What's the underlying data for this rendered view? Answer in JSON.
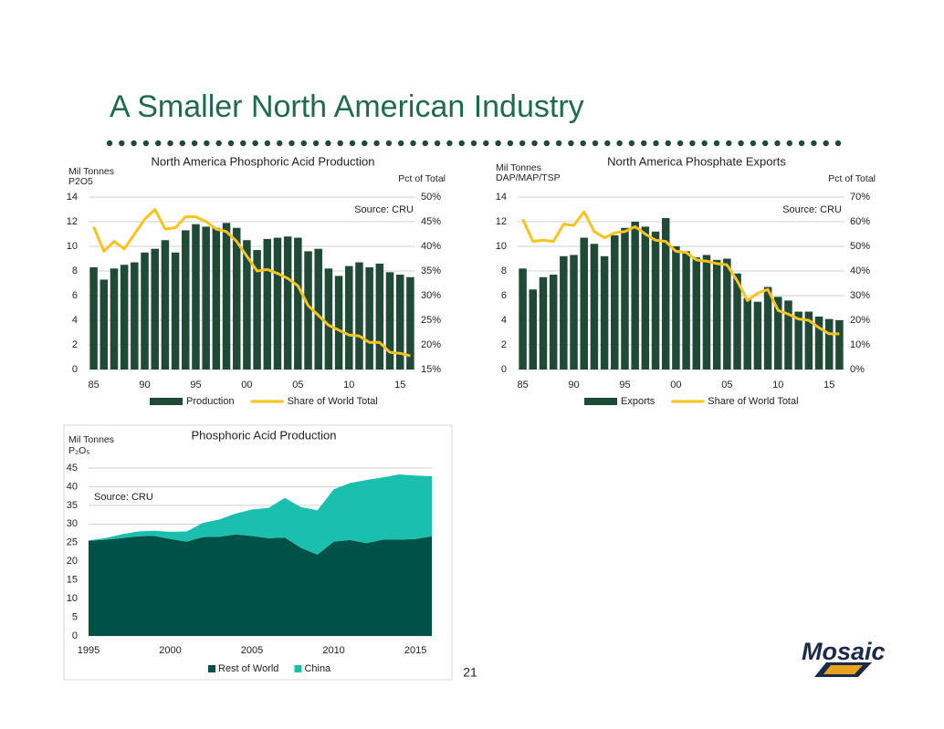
{
  "title": "A Smaller North American Industry",
  "page_number": "21",
  "logo": "Mosaic",
  "chart_data": [
    {
      "type": "combo",
      "title": "North America Phosphoric Acid Production",
      "y_label": [
        "Mil Tonnes",
        "P2O5"
      ],
      "y2_label": "Pct of Total",
      "annotation": "Source:  CRU",
      "categories": [
        "85",
        null,
        null,
        null,
        null,
        "90",
        null,
        null,
        null,
        null,
        "95",
        null,
        null,
        null,
        null,
        "00",
        null,
        null,
        null,
        null,
        "05",
        null,
        null,
        null,
        null,
        "10",
        null,
        null,
        null,
        null,
        "15",
        null
      ],
      "ylim": [
        0,
        14
      ],
      "yticks": [
        0,
        2,
        4,
        6,
        8,
        10,
        12,
        14
      ],
      "y2lim": [
        15,
        50
      ],
      "y2ticks": [
        {
          "value": 15,
          "label": "15%"
        },
        {
          "value": 20,
          "label": "20%"
        },
        {
          "value": 25,
          "label": "25%"
        },
        {
          "value": 30,
          "label": "30%"
        },
        {
          "value": 35,
          "label": "35%"
        },
        {
          "value": 40,
          "label": "40%"
        },
        {
          "value": 45,
          "label": "45%"
        },
        {
          "value": 50,
          "label": "50%"
        }
      ],
      "grid": true,
      "legend": "bottom",
      "series": [
        {
          "name": "Production",
          "type": "bar",
          "color": "#1f4a36",
          "values": [
            8.3,
            7.3,
            8.2,
            8.5,
            8.7,
            9.5,
            9.8,
            10.5,
            9.5,
            11.3,
            11.8,
            11.6,
            11.5,
            11.9,
            11.5,
            10.5,
            9.7,
            10.6,
            10.7,
            10.8,
            10.7,
            9.6,
            9.8,
            8.2,
            7.6,
            8.4,
            8.7,
            8.3,
            8.6,
            7.9,
            7.7,
            7.5
          ]
        },
        {
          "name": "Share of World Total",
          "type": "line",
          "axis": "y2",
          "color": "#f7c31c",
          "values": [
            44,
            39,
            41,
            39.5,
            42.5,
            45.5,
            47.5,
            43.5,
            43.8,
            46,
            46,
            45,
            43.5,
            43,
            41,
            38,
            35,
            35.3,
            34.5,
            33.5,
            32,
            28,
            26,
            24,
            23,
            22,
            21.8,
            20.5,
            20.5,
            18.5,
            18.3,
            17.8
          ]
        }
      ]
    },
    {
      "type": "combo",
      "title": "North America Phosphate Exports",
      "y_label": [
        "Mil Tonnes",
        "DAP/MAP/TSP"
      ],
      "y2_label": "Pct of Total",
      "annotation": "Source:  CRU",
      "categories": [
        "85",
        null,
        null,
        null,
        null,
        "90",
        null,
        null,
        null,
        null,
        "95",
        null,
        null,
        null,
        null,
        "00",
        null,
        null,
        null,
        null,
        "05",
        null,
        null,
        null,
        null,
        "10",
        null,
        null,
        null,
        null,
        "15",
        null
      ],
      "ylim": [
        0,
        14
      ],
      "yticks": [
        0,
        2,
        4,
        6,
        8,
        10,
        12,
        14
      ],
      "y2lim": [
        0,
        70
      ],
      "y2ticks": [
        {
          "value": 0,
          "label": "0%"
        },
        {
          "value": 10,
          "label": "10%"
        },
        {
          "value": 20,
          "label": "20%"
        },
        {
          "value": 30,
          "label": "30%"
        },
        {
          "value": 40,
          "label": "40%"
        },
        {
          "value": 50,
          "label": "50%"
        },
        {
          "value": 60,
          "label": "60%"
        },
        {
          "value": 70,
          "label": "70%"
        }
      ],
      "grid": true,
      "legend": "bottom",
      "series": [
        {
          "name": "Exports",
          "type": "bar",
          "color": "#1f4a36",
          "values": [
            8.2,
            6.5,
            7.5,
            7.7,
            9.2,
            9.3,
            10.7,
            10.2,
            9.2,
            10.9,
            11.5,
            12.0,
            11.6,
            11.2,
            12.3,
            10.0,
            9.6,
            9.1,
            9.3,
            8.9,
            9.0,
            7.8,
            5.8,
            5.5,
            6.7,
            5.9,
            5.6,
            4.7,
            4.7,
            4.3,
            4.1,
            4.0
          ]
        },
        {
          "name": "Share of World Total",
          "type": "line",
          "axis": "y2",
          "color": "#f7c31c",
          "values": [
            61,
            52,
            52.5,
            52,
            59,
            58.5,
            64,
            56,
            53.5,
            55.5,
            56,
            58,
            55,
            52.5,
            52,
            48,
            47.5,
            44.5,
            44,
            43,
            42.5,
            36,
            28,
            31,
            32.5,
            24,
            22.5,
            20.5,
            20,
            17,
            14.5,
            14.5
          ]
        }
      ]
    },
    {
      "type": "area",
      "stacked": true,
      "title": "Phosphoric Acid Production",
      "y_label": [
        "Mil Tonnes",
        "P₂O₅"
      ],
      "annotation": "Source:  CRU",
      "x": [
        1995,
        1996,
        1997,
        1998,
        1999,
        2000,
        2001,
        2002,
        2003,
        2004,
        2005,
        2006,
        2007,
        2008,
        2009,
        2010,
        2011,
        2012,
        2013,
        2014,
        2015,
        2016
      ],
      "xlim": [
        1995,
        2016
      ],
      "xticks": [
        1995,
        2000,
        2005,
        2010,
        2015
      ],
      "ylim": [
        0,
        45
      ],
      "yticks": [
        0,
        5,
        10,
        15,
        20,
        25,
        30,
        35,
        40,
        45
      ],
      "grid": true,
      "legend": "bottom",
      "series": [
        {
          "name": "Rest of World",
          "color": "#005248",
          "values": [
            25.5,
            25.8,
            26.2,
            26.7,
            26.8,
            26.0,
            25.3,
            26.5,
            26.6,
            27.2,
            26.8,
            26.2,
            26.4,
            23.6,
            21.8,
            25.3,
            25.7,
            24.9,
            25.8,
            25.8,
            26.0,
            26.7
          ]
        },
        {
          "name": "China",
          "color": "#1bbfad",
          "values": [
            0.1,
            0.4,
            1.0,
            1.3,
            1.4,
            1.9,
            2.7,
            3.8,
            4.6,
            5.6,
            7.1,
            8.1,
            10.6,
            10.9,
            11.9,
            14.0,
            15.3,
            16.9,
            16.7,
            17.5,
            17.0,
            16.1
          ]
        }
      ]
    }
  ]
}
